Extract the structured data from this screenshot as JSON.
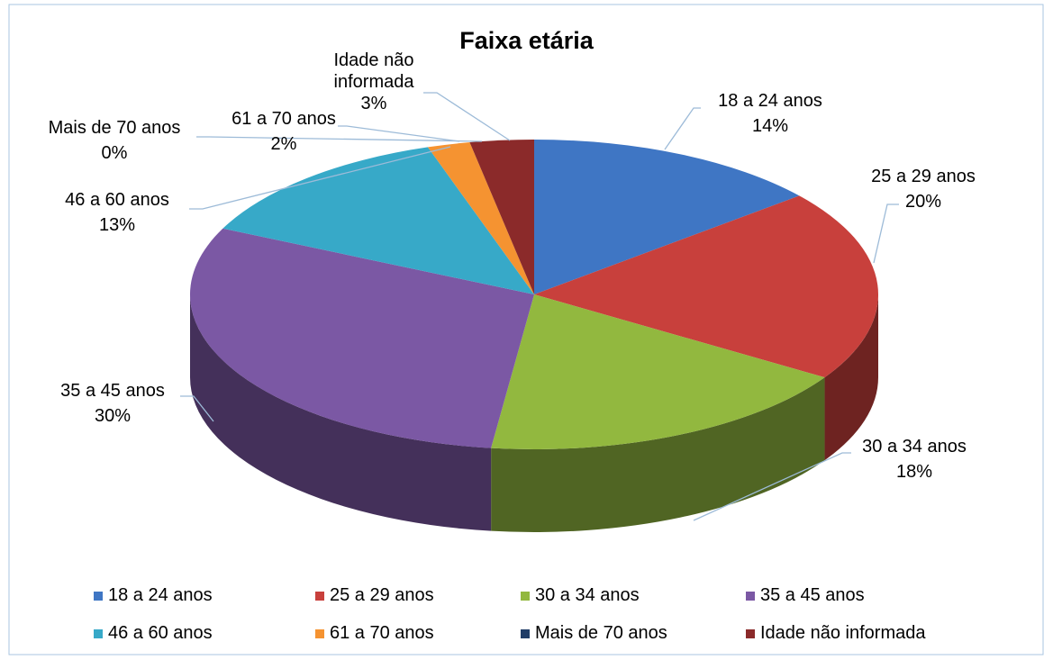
{
  "chart_data": {
    "type": "pie",
    "title": "Faixa etária",
    "categories": [
      "18  a 24 anos",
      "25 a 29 anos",
      "30 a 34 anos",
      "35 a 45 anos",
      "46 a 60 anos",
      "61 a 70 anos",
      "Mais de 70 anos",
      "Idade não informada"
    ],
    "values": [
      14,
      20,
      18,
      30,
      13,
      2,
      0,
      3
    ],
    "value_labels": [
      "14%",
      "20%",
      "18%",
      "30%",
      "13%",
      "2%",
      "0%",
      "3%"
    ],
    "colors": [
      "#3f76c4",
      "#c8403c",
      "#92b83f",
      "#7b58a4",
      "#37a9c8",
      "#f59331",
      "#1f3c66",
      "#8b2a2a"
    ],
    "legend": "bottom"
  }
}
